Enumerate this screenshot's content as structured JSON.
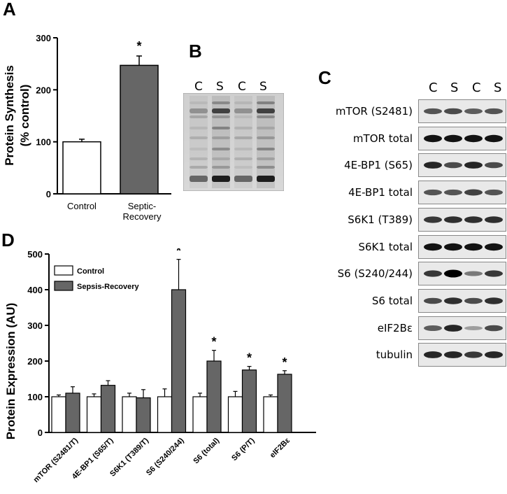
{
  "panels": {
    "a": "A",
    "b": "B",
    "c": "C",
    "d": "D"
  },
  "chart_data": [
    {
      "type": "bar",
      "panel": "A",
      "categories": [
        "Control",
        "Septic-\nRecovery"
      ],
      "values": [
        100,
        247
      ],
      "errors": [
        5,
        18
      ],
      "significance": [
        "",
        "*"
      ],
      "ylabel_line1": "Protein Synthesis",
      "ylabel_line2": "(% control)",
      "ylim": [
        0,
        300
      ],
      "yticks": [
        0,
        100,
        200,
        300
      ],
      "colors": [
        "#ffffff",
        "#666666"
      ]
    },
    {
      "type": "bar",
      "panel": "D",
      "categories": [
        "mTOR (S2481/T)",
        "4E-BP1 (S65/T)",
        "S6K1 (T389/T)",
        "S6 (S240/244)",
        "S6 (total)",
        "S6 (P/T)",
        "eIF2Bε"
      ],
      "series": [
        {
          "name": "Control",
          "values": [
            100,
            100,
            100,
            100,
            100,
            100,
            100
          ],
          "errors": [
            5,
            8,
            10,
            22,
            10,
            15,
            5
          ],
          "color": "#ffffff"
        },
        {
          "name": "Sepsis-Recovery",
          "values": [
            110,
            132,
            97,
            400,
            200,
            175,
            163
          ],
          "errors": [
            18,
            13,
            23,
            85,
            30,
            10,
            10
          ],
          "color": "#666666"
        }
      ],
      "significance": [
        "",
        "",
        "",
        "*",
        "*",
        "*",
        "*"
      ],
      "ylabel": "Protein  Expression (AU)",
      "ylim": [
        0,
        500
      ],
      "yticks": [
        0,
        100,
        200,
        300,
        400,
        500
      ]
    }
  ],
  "gel": {
    "lanes": [
      "C",
      "S",
      "C",
      "S"
    ]
  },
  "blots": {
    "lanes": [
      "C",
      "S",
      "C",
      "S"
    ],
    "rows": [
      {
        "label": "mTOR (S2481)",
        "intensity": [
          0.55,
          0.6,
          0.5,
          0.55
        ]
      },
      {
        "label": "mTOR total",
        "intensity": [
          0.9,
          0.9,
          0.9,
          0.9
        ]
      },
      {
        "label": "4E-BP1 (S65)",
        "intensity": [
          0.8,
          0.6,
          0.8,
          0.6
        ]
      },
      {
        "label": "4E-BP1 total",
        "intensity": [
          0.55,
          0.55,
          0.65,
          0.55
        ]
      },
      {
        "label": "S6K1 (T389)",
        "intensity": [
          0.7,
          0.75,
          0.75,
          0.75
        ]
      },
      {
        "label": "S6K1 total",
        "intensity": [
          0.9,
          0.9,
          0.9,
          0.9
        ]
      },
      {
        "label": "S6 (S240/244)",
        "intensity": [
          0.7,
          1.0,
          0.35,
          0.7
        ]
      },
      {
        "label": "S6 total",
        "intensity": [
          0.6,
          0.75,
          0.6,
          0.75
        ]
      },
      {
        "label": "eIF2Bε",
        "intensity": [
          0.5,
          0.8,
          0.15,
          0.6
        ]
      },
      {
        "label": "tubulin",
        "intensity": [
          0.8,
          0.8,
          0.7,
          0.8
        ]
      }
    ]
  }
}
